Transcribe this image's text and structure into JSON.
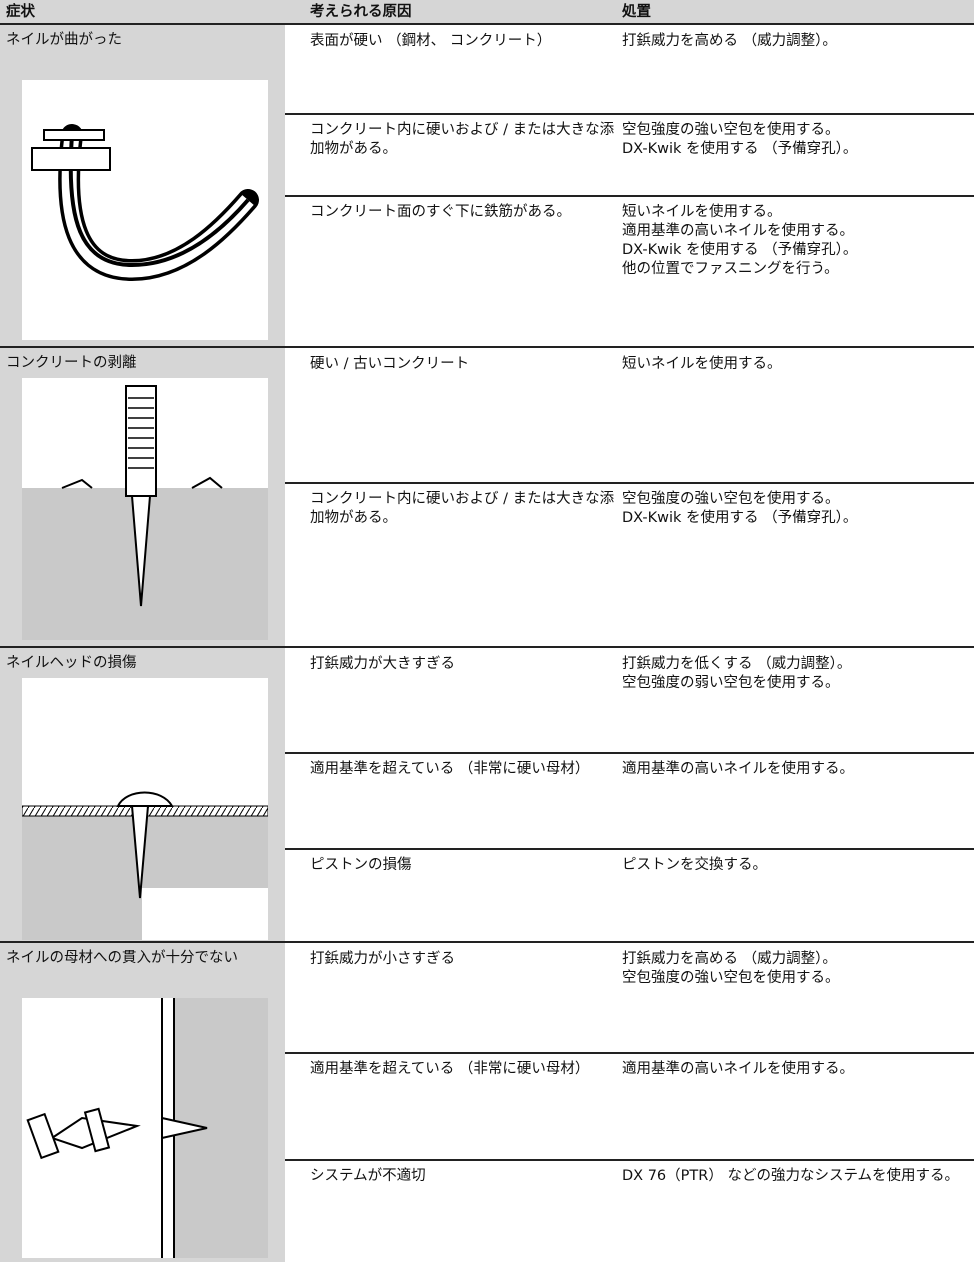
{
  "header": [
    "症状",
    "考えられる原因",
    "処置"
  ],
  "rows": [
    {
      "symptom": "ネイルが曲がった",
      "causes": [
        {
          "cause": "表面が硬い （鋼材、 コンクリート）",
          "remedies": [
            "打鋲威力を高める （威力調整）。"
          ]
        },
        {
          "cause": "コンクリート内に硬いおよび / または大きな添加物がある。",
          "remedies": [
            "空包強度の強い空包を使用する。",
            "DX-Kwik を使用する （予備穿孔）。"
          ]
        },
        {
          "cause": "コンクリート面のすぐ下に鉄筋がある。",
          "remedies": [
            "短いネイルを使用する。",
            "適用基準の高いネイルを使用する。",
            "DX-Kwik を使用する （予備穿孔）。",
            "他の位置でファスニングを行う。"
          ]
        }
      ]
    },
    {
      "symptom": "コンクリートの剥離",
      "causes": [
        {
          "cause": "硬い / 古いコンクリート",
          "remedies": [
            "短いネイルを使用する。"
          ]
        },
        {
          "cause": "コンクリート内に硬いおよび / または大きな添加物がある。",
          "remedies": [
            "空包強度の強い空包を使用する。",
            "DX-Kwik を使用する （予備穿孔）。"
          ]
        }
      ]
    },
    {
      "symptom": "ネイルヘッドの損傷",
      "causes": [
        {
          "cause": "打鋲威力が大きすぎる",
          "remedies": [
            "打鋲威力を低くする （威力調整）。",
            "空包強度の弱い空包を使用する。"
          ]
        },
        {
          "cause": "適用基準を超えている （非常に硬い母材）",
          "remedies": [
            "適用基準の高いネイルを使用する。"
          ]
        },
        {
          "cause": "ピストンの損傷",
          "remedies": [
            "ピストンを交換する。"
          ]
        }
      ]
    },
    {
      "symptom": "ネイルの母材への貫入が十分でない",
      "causes": [
        {
          "cause": "打鋲威力が小さすぎる",
          "remedies": [
            "打鋲威力を高める （威力調整）。",
            "空包強度の強い空包を使用する。"
          ]
        },
        {
          "cause": "適用基準を超えている （非常に硬い母材）",
          "remedies": [
            "適用基準の高いネイルを使用する。"
          ]
        },
        {
          "cause": "システムが不適切",
          "remedies": [
            "DX 76（PTR） などの強力なシステムを使用する。"
          ]
        }
      ]
    }
  ]
}
